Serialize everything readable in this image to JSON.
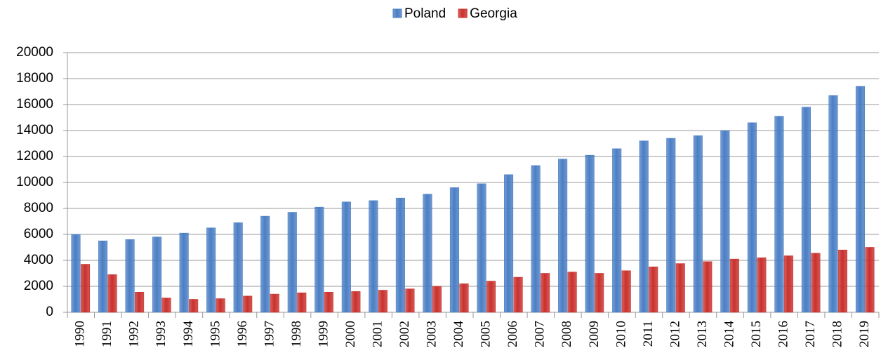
{
  "chart_data": {
    "type": "bar",
    "categories": [
      "1990",
      "1991",
      "1992",
      "1993",
      "1994",
      "1995",
      "1996",
      "1997",
      "1998",
      "1999",
      "2000",
      "2001",
      "2002",
      "2003",
      "2004",
      "2005",
      "2006",
      "2007",
      "2008",
      "2009",
      "2010",
      "2011",
      "2012",
      "2013",
      "2014",
      "2015",
      "2016",
      "2017",
      "2018",
      "2019"
    ],
    "series": [
      {
        "name": "Poland",
        "color": "#4a7ec4",
        "values": [
          6000,
          5500,
          5600,
          5800,
          6100,
          6500,
          6900,
          7400,
          7700,
          8100,
          8500,
          8600,
          8800,
          9100,
          9600,
          9900,
          10600,
          11300,
          11800,
          12100,
          12600,
          13200,
          13400,
          13600,
          14000,
          14600,
          15100,
          15800,
          16700,
          17400
        ]
      },
      {
        "name": "Georgia",
        "color": "#c9302c",
        "values": [
          3700,
          2900,
          1550,
          1100,
          1000,
          1050,
          1250,
          1400,
          1500,
          1550,
          1600,
          1700,
          1800,
          2000,
          2200,
          2400,
          2700,
          3000,
          3100,
          3000,
          3200,
          3500,
          3750,
          3900,
          4100,
          4200,
          4350,
          4550,
          4800,
          5000
        ]
      }
    ],
    "ylim": [
      0,
      20000
    ],
    "yticks": [
      0,
      2000,
      4000,
      6000,
      8000,
      10000,
      12000,
      14000,
      16000,
      18000,
      20000
    ],
    "grid": true,
    "legend": "top"
  }
}
